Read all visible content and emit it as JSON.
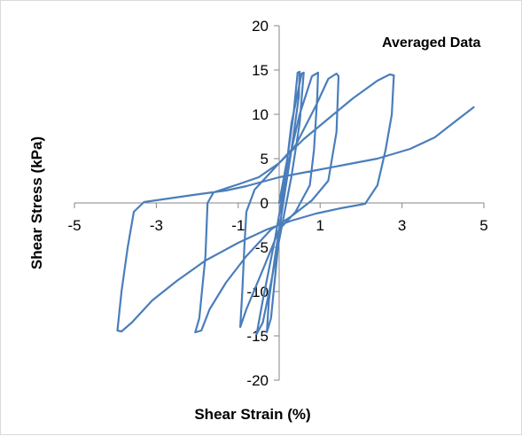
{
  "chart_data": {
    "type": "line",
    "title": "",
    "annotation": "Averaged Data",
    "xlabel": "Shear Strain (%)",
    "ylabel": "Shear Stress (kPa)",
    "xlim": [
      -5,
      5
    ],
    "ylim": [
      -20,
      20
    ],
    "xticks": [
      "-5",
      "-3",
      "-1",
      "1",
      "3",
      "5"
    ],
    "yticks": [
      "20",
      "15",
      "10",
      "5",
      "0",
      "-5",
      "-10",
      "-15",
      "-20"
    ],
    "xtick_values": [
      -5,
      -3,
      -1,
      1,
      3,
      5
    ],
    "ytick_values": [
      20,
      15,
      10,
      5,
      0,
      -5,
      -10,
      -15,
      -20
    ],
    "grid": false,
    "line_color": "#4a7ebb",
    "series": [
      {
        "points": [
          [
            0,
            0
          ],
          [
            0.2,
            5
          ],
          [
            0.35,
            10
          ],
          [
            0.45,
            14.7
          ],
          [
            0.5,
            14.8
          ],
          [
            0.48,
            12
          ],
          [
            0.3,
            6
          ],
          [
            0.1,
            0
          ],
          [
            -0.1,
            -6
          ],
          [
            -0.25,
            -11
          ],
          [
            -0.3,
            -14.6
          ],
          [
            -0.2,
            -13
          ],
          [
            -0.05,
            -6
          ],
          [
            0.15,
            3
          ],
          [
            0.3,
            9
          ],
          [
            0.55,
            14.6
          ],
          [
            0.6,
            14.7
          ],
          [
            0.5,
            9
          ],
          [
            0.3,
            3
          ],
          [
            0.05,
            -3
          ],
          [
            -0.2,
            -9
          ],
          [
            -0.4,
            -13.5
          ],
          [
            -0.55,
            -14.8
          ],
          [
            -0.4,
            -11
          ],
          [
            -0.1,
            -4
          ],
          [
            0.2,
            4
          ],
          [
            0.5,
            10
          ],
          [
            0.8,
            14.3
          ],
          [
            0.95,
            14.7
          ],
          [
            0.93,
            12
          ],
          [
            0.85,
            6
          ],
          [
            0.75,
            2
          ],
          [
            0.4,
            -1
          ],
          [
            0.0,
            -3
          ],
          [
            -0.35,
            -7
          ],
          [
            -0.8,
            -12
          ],
          [
            -0.95,
            -14
          ],
          [
            -0.9,
            -10
          ],
          [
            -0.85,
            -5
          ],
          [
            -0.8,
            -1
          ],
          [
            -0.6,
            1.5
          ],
          [
            -0.1,
            4
          ],
          [
            0.4,
            6.5
          ],
          [
            0.9,
            11
          ],
          [
            1.2,
            14
          ],
          [
            1.4,
            14.6
          ],
          [
            1.45,
            14.3
          ],
          [
            1.4,
            8
          ],
          [
            1.2,
            2.5
          ],
          [
            0.8,
            0.3
          ],
          [
            0.3,
            -1.5
          ],
          [
            -0.2,
            -3
          ],
          [
            -0.8,
            -6
          ],
          [
            -1.3,
            -9
          ],
          [
            -1.7,
            -12
          ],
          [
            -1.9,
            -14.4
          ],
          [
            -2.05,
            -14.6
          ],
          [
            -1.95,
            -13
          ],
          [
            -1.8,
            -6
          ],
          [
            -1.75,
            0
          ],
          [
            -1.6,
            1.2
          ],
          [
            -1.0,
            2.1
          ],
          [
            -0.5,
            2.9
          ],
          [
            0,
            4.5
          ],
          [
            0.6,
            7.2
          ],
          [
            1.2,
            9.5
          ],
          [
            1.8,
            11.8
          ],
          [
            2.4,
            13.8
          ],
          [
            2.7,
            14.5
          ],
          [
            2.8,
            14.4
          ],
          [
            2.75,
            10
          ],
          [
            2.6,
            6
          ],
          [
            2.4,
            2
          ],
          [
            2.1,
            -0.1
          ],
          [
            1.5,
            -0.6
          ],
          [
            0.9,
            -1.2
          ],
          [
            0.3,
            -2
          ],
          [
            -0.3,
            -3
          ],
          [
            -1,
            -4.5
          ],
          [
            -1.8,
            -6.5
          ],
          [
            -2.5,
            -8.8
          ],
          [
            -3.1,
            -11
          ],
          [
            -3.6,
            -13.5
          ],
          [
            -3.85,
            -14.5
          ],
          [
            -3.95,
            -14.4
          ],
          [
            -3.85,
            -10
          ],
          [
            -3.7,
            -5
          ],
          [
            -3.55,
            -1
          ],
          [
            -3.3,
            0.1
          ],
          [
            -2.7,
            0.5
          ],
          [
            -2.1,
            0.9
          ],
          [
            -1.3,
            1.4
          ],
          [
            -0.8,
            1.9
          ],
          [
            0,
            2.9
          ],
          [
            0.8,
            3.6
          ],
          [
            1.6,
            4.3
          ],
          [
            2.4,
            5.0
          ],
          [
            3.2,
            6.1
          ],
          [
            3.8,
            7.4
          ],
          [
            4.3,
            9.2
          ],
          [
            4.75,
            10.8
          ]
        ]
      }
    ]
  }
}
